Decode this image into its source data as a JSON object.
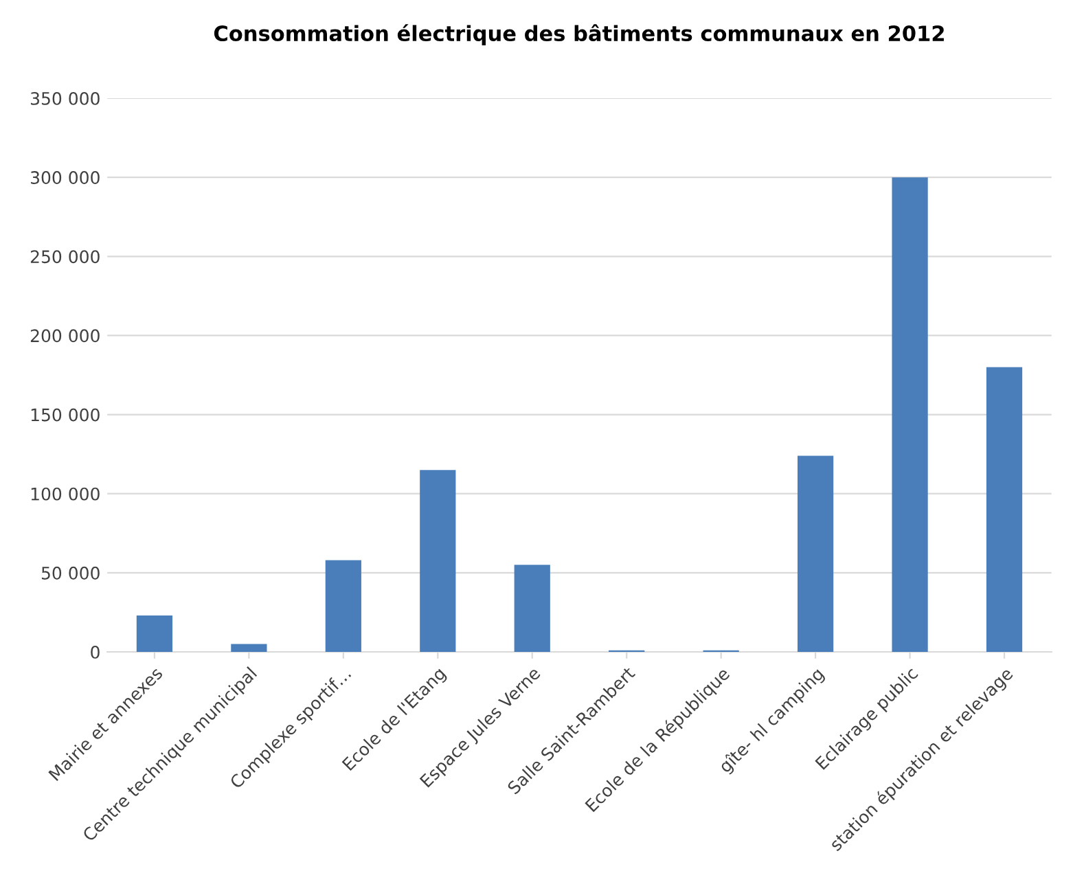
{
  "chart_data": {
    "type": "bar",
    "title": "Consommation électrique des bâtiments communaux en 2012",
    "categories": [
      "Mairie et annexes",
      "Centre technique municipal",
      "Complexe sportif…",
      "Ecole de l'Etang",
      "Espace Jules Verne",
      "Salle Saint-Rambert",
      "Ecole de la République",
      "gîte- hl camping",
      "Eclairage public",
      "station épuration et relevage"
    ],
    "values": [
      23000,
      5000,
      58000,
      115000,
      55000,
      1000,
      1000,
      124000,
      300000,
      180000
    ],
    "color": "#4a7ebb",
    "ylim": [
      0,
      350000
    ],
    "yticks": [
      {
        "value": 0,
        "label": "0"
      },
      {
        "value": 50000,
        "label": "50 000"
      },
      {
        "value": 100000,
        "label": "100 000"
      },
      {
        "value": 150000,
        "label": "150 000"
      },
      {
        "value": 200000,
        "label": "200 000"
      },
      {
        "value": 250000,
        "label": "250 000"
      },
      {
        "value": 300000,
        "label": "300 000"
      },
      {
        "value": 350000,
        "label": "350 000"
      }
    ],
    "grid": "y"
  }
}
